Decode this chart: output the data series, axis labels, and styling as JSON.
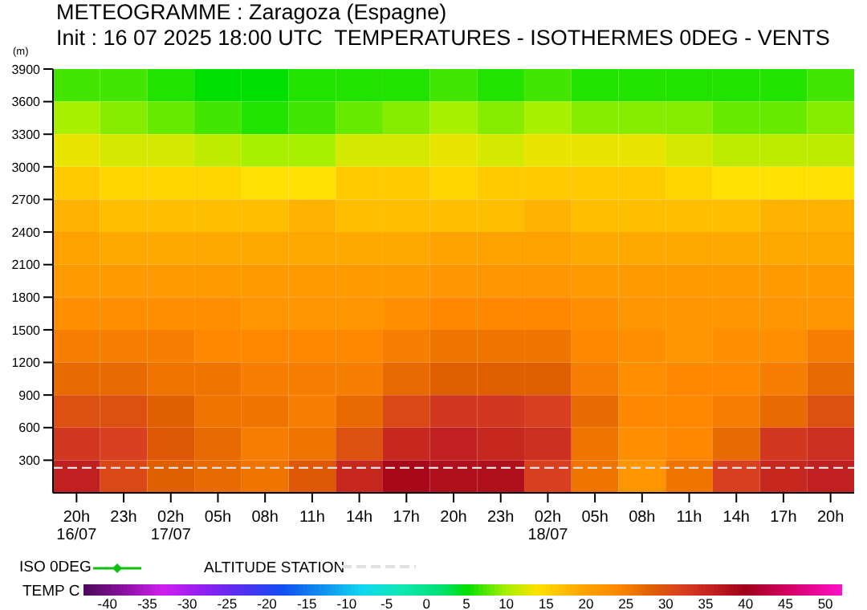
{
  "chart_data": {
    "type": "heatmap",
    "title": "METEOGRAMME : Zaragoza (Espagne)",
    "subtitle": "Init : 16 07 2025 18:00 UTC  TEMPERATURES - ISOTHERMES 0DEG - VENTS",
    "ylabel": "(m)",
    "clabel": "TEMP C",
    "categories": [
      "20h\n16/07",
      "23h",
      "02h\n17/07",
      "05h",
      "08h",
      "11h",
      "14h",
      "17h",
      "20h",
      "23h",
      "02h\n18/07",
      "05h",
      "08h",
      "11h",
      "14h",
      "17h",
      "20h"
    ],
    "ylim": [
      0,
      3900
    ],
    "yticks": [
      300,
      600,
      900,
      1200,
      1500,
      1800,
      2100,
      2400,
      2700,
      3000,
      3300,
      3600,
      3900
    ],
    "cells": [
      [
        7,
        7,
        6,
        5,
        5,
        6,
        6,
        6,
        7,
        6,
        7,
        6,
        6,
        6,
        6,
        6,
        7
      ],
      [
        10,
        9,
        8,
        7,
        6,
        7,
        8,
        9,
        10,
        9,
        10,
        9,
        9,
        9,
        8,
        8,
        9
      ],
      [
        13,
        12,
        12,
        11,
        10,
        10,
        12,
        12,
        13,
        12,
        13,
        13,
        13,
        12,
        11,
        11,
        11
      ],
      [
        16,
        15,
        15,
        15,
        14,
        14,
        16,
        16,
        15,
        16,
        16,
        16,
        16,
        15,
        14,
        14,
        14
      ],
      [
        18,
        17,
        17,
        17,
        17,
        18,
        17,
        17,
        17,
        17,
        18,
        17,
        17,
        17,
        17,
        18,
        18
      ],
      [
        20,
        19,
        19,
        19,
        19,
        19,
        19,
        19,
        20,
        20,
        20,
        19,
        19,
        19,
        19,
        19,
        19
      ],
      [
        21,
        21,
        21,
        21,
        21,
        21,
        21,
        21,
        22,
        22,
        22,
        21,
        21,
        21,
        21,
        21,
        21
      ],
      [
        23,
        23,
        23,
        23,
        22,
        22,
        22,
        23,
        24,
        24,
        24,
        23,
        22,
        22,
        22,
        22,
        22
      ],
      [
        25,
        25,
        25,
        24,
        24,
        24,
        24,
        25,
        26,
        26,
        26,
        24,
        23,
        22,
        23,
        23,
        25
      ],
      [
        27,
        27,
        26,
        26,
        25,
        25,
        25,
        27,
        28,
        28,
        28,
        25,
        23,
        24,
        24,
        25,
        27
      ],
      [
        30,
        30,
        28,
        26,
        26,
        25,
        27,
        31,
        33,
        33,
        32,
        27,
        24,
        24,
        25,
        27,
        30
      ],
      [
        33,
        32,
        29,
        27,
        25,
        26,
        30,
        35,
        36,
        35,
        34,
        26,
        23,
        24,
        27,
        33,
        34
      ],
      [
        36,
        31,
        28,
        27,
        26,
        29,
        35,
        39,
        38,
        38,
        32,
        26,
        22,
        26,
        32,
        35,
        36
      ]
    ],
    "clim": [
      -43,
      52
    ],
    "cticks": [
      -40,
      -35,
      -30,
      -25,
      -20,
      -15,
      -10,
      -5,
      0,
      5,
      10,
      15,
      20,
      25,
      30,
      35,
      40,
      45,
      50
    ],
    "ref_lines": [
      {
        "axis": "y",
        "value": 230,
        "label": "ALTITUDE STATION",
        "color": "#e0e0e0",
        "line_style": "dashed"
      }
    ],
    "annotations": [
      "ISO 0DEG"
    ]
  }
}
